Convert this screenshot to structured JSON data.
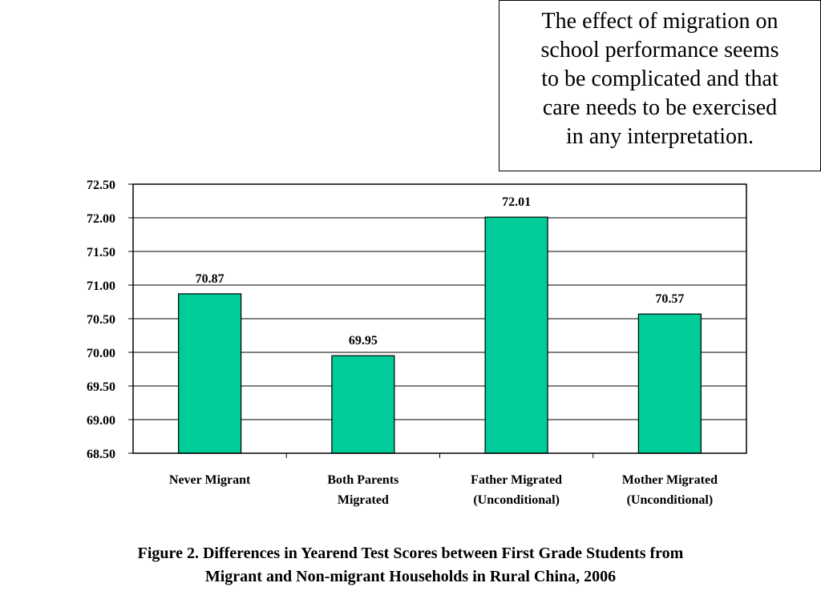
{
  "callout": {
    "lines": [
      "The effect of migration on",
      "school performance seems",
      "to be complicated and that",
      "care needs to be exercised",
      "in any interpretation."
    ]
  },
  "caption": {
    "lines": [
      "Figure 2. Differences in Yearend Test Scores between First Grade Students from",
      "Migrant and Non-migrant Households in Rural China, 2006"
    ]
  },
  "colors": {
    "bar": "#00CC99",
    "axis": "#000000"
  },
  "chart_data": {
    "type": "bar",
    "title": "",
    "xlabel": "",
    "ylabel": "",
    "ylim": [
      68.5,
      72.5
    ],
    "yticks": [
      "72.50",
      "72.00",
      "71.50",
      "71.00",
      "70.50",
      "70.00",
      "69.50",
      "69.00",
      "68.50"
    ],
    "grid": true,
    "categories": [
      [
        "Never Migrant"
      ],
      [
        "Both Parents",
        "Migrated"
      ],
      [
        "Father Migrated",
        "(Unconditional)"
      ],
      [
        "Mother Migrated",
        "(Unconditional)"
      ]
    ],
    "values": [
      70.87,
      69.95,
      72.01,
      70.57
    ],
    "value_labels": [
      "70.87",
      "69.95",
      "72.01",
      "70.57"
    ]
  }
}
